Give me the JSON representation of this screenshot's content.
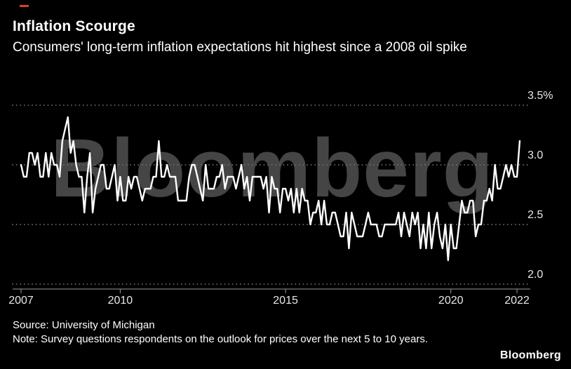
{
  "header": {
    "title": "Inflation Scourge",
    "subtitle": "Consumers' long-term inflation expectations hit highest since a 2008 oil spike"
  },
  "watermark": "Bloomberg",
  "chart_data": {
    "type": "line",
    "series_name": "Consumer long-term inflation expectations",
    "unit": "%",
    "frequency": "monthly",
    "x_start": "2007-01",
    "x_end": "2022-02",
    "x_tick_labels": [
      "2007",
      "2010",
      "2015",
      "2020",
      "2022"
    ],
    "x_tick_years": [
      2007,
      2010,
      2015,
      2020,
      2022
    ],
    "y_tick_labels": [
      "3.5%",
      "3.0",
      "2.5",
      "2.0"
    ],
    "y_tick_values": [
      3.5,
      3.0,
      2.5,
      2.0
    ],
    "ylim": [
      1.95,
      3.6
    ],
    "grid": "dotted-horizontal",
    "legend": "none",
    "line_color": "#ffffff",
    "values": [
      3.0,
      2.9,
      2.9,
      3.1,
      3.1,
      3.0,
      3.1,
      2.9,
      2.9,
      3.1,
      2.9,
      3.1,
      3.0,
      3.0,
      2.9,
      3.2,
      3.3,
      3.4,
      3.1,
      3.2,
      3.0,
      2.9,
      2.9,
      2.6,
      2.9,
      3.1,
      2.6,
      2.8,
      2.9,
      3.0,
      3.0,
      2.8,
      2.8,
      2.9,
      3.0,
      2.7,
      2.9,
      2.7,
      2.7,
      2.9,
      2.8,
      2.9,
      2.9,
      2.8,
      2.7,
      2.8,
      2.8,
      2.8,
      2.9,
      2.9,
      3.2,
      2.9,
      2.9,
      3.0,
      2.9,
      2.9,
      2.9,
      2.7,
      2.7,
      2.7,
      2.7,
      2.9,
      3.0,
      3.0,
      2.9,
      2.8,
      2.7,
      3.0,
      2.8,
      2.8,
      2.8,
      2.9,
      2.9,
      3.0,
      2.8,
      2.9,
      2.9,
      2.9,
      2.8,
      2.9,
      3.0,
      2.8,
      2.9,
      2.7,
      2.9,
      2.9,
      2.9,
      2.9,
      2.8,
      2.9,
      2.6,
      2.9,
      2.8,
      2.8,
      2.6,
      2.8,
      2.8,
      2.7,
      2.8,
      2.6,
      2.8,
      2.6,
      2.8,
      2.7,
      2.7,
      2.5,
      2.6,
      2.6,
      2.7,
      2.5,
      2.7,
      2.5,
      2.5,
      2.6,
      2.6,
      2.5,
      2.4,
      2.4,
      2.6,
      2.3,
      2.6,
      2.5,
      2.4,
      2.4,
      2.4,
      2.5,
      2.6,
      2.5,
      2.5,
      2.5,
      2.4,
      2.4,
      2.5,
      2.5,
      2.5,
      2.5,
      2.5,
      2.6,
      2.4,
      2.6,
      2.5,
      2.4,
      2.6,
      2.5,
      2.6,
      2.3,
      2.5,
      2.3,
      2.6,
      2.3,
      2.5,
      2.6,
      2.4,
      2.3,
      2.5,
      2.2,
      2.5,
      2.3,
      2.3,
      2.5,
      2.7,
      2.6,
      2.6,
      2.7,
      2.7,
      2.4,
      2.5,
      2.5,
      2.7,
      2.7,
      2.8,
      2.7,
      3.0,
      2.8,
      2.8,
      2.9,
      3.0,
      2.9,
      3.0,
      2.9,
      2.9,
      3.2
    ]
  },
  "footer": {
    "source": "Source: University of Michigan",
    "note": "Note: Survey questions respondents on the outlook for prices over the next 5 to 10 years.",
    "brand": "Bloomberg"
  }
}
